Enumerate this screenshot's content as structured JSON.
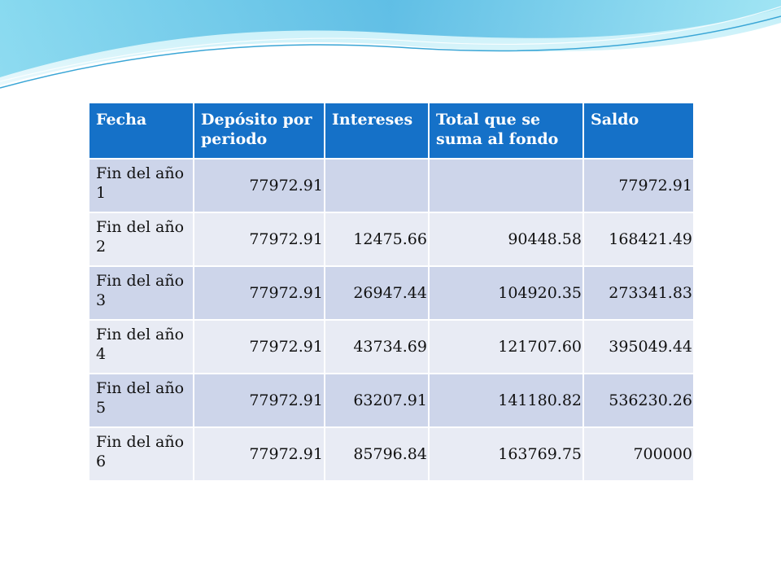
{
  "theme": {
    "header_color": "#1571c8",
    "row_odd_color": "#cdd5ea",
    "row_even_color": "#e8ebf4",
    "wave_color": "#5bc0e0"
  },
  "table": {
    "headers": [
      "Fecha",
      "Depósito por periodo",
      "Intereses",
      "Total que se suma al fondo",
      "Saldo"
    ],
    "rows": [
      [
        "Fin del año 1",
        "77972.91",
        "",
        "",
        "77972.91"
      ],
      [
        "Fin del año 2",
        "77972.91",
        "12475.66",
        "90448.58",
        "168421.49"
      ],
      [
        "Fin del año 3",
        "77972.91",
        "26947.44",
        "104920.35",
        "273341.83"
      ],
      [
        "Fin del año 4",
        "77972.91",
        "43734.69",
        "121707.60",
        "395049.44"
      ],
      [
        "Fin del año 5",
        "77972.91",
        "63207.91",
        "141180.82",
        "536230.26"
      ],
      [
        "Fin del año 6",
        "77972.91",
        "85796.84",
        "163769.75",
        "700000"
      ]
    ]
  }
}
